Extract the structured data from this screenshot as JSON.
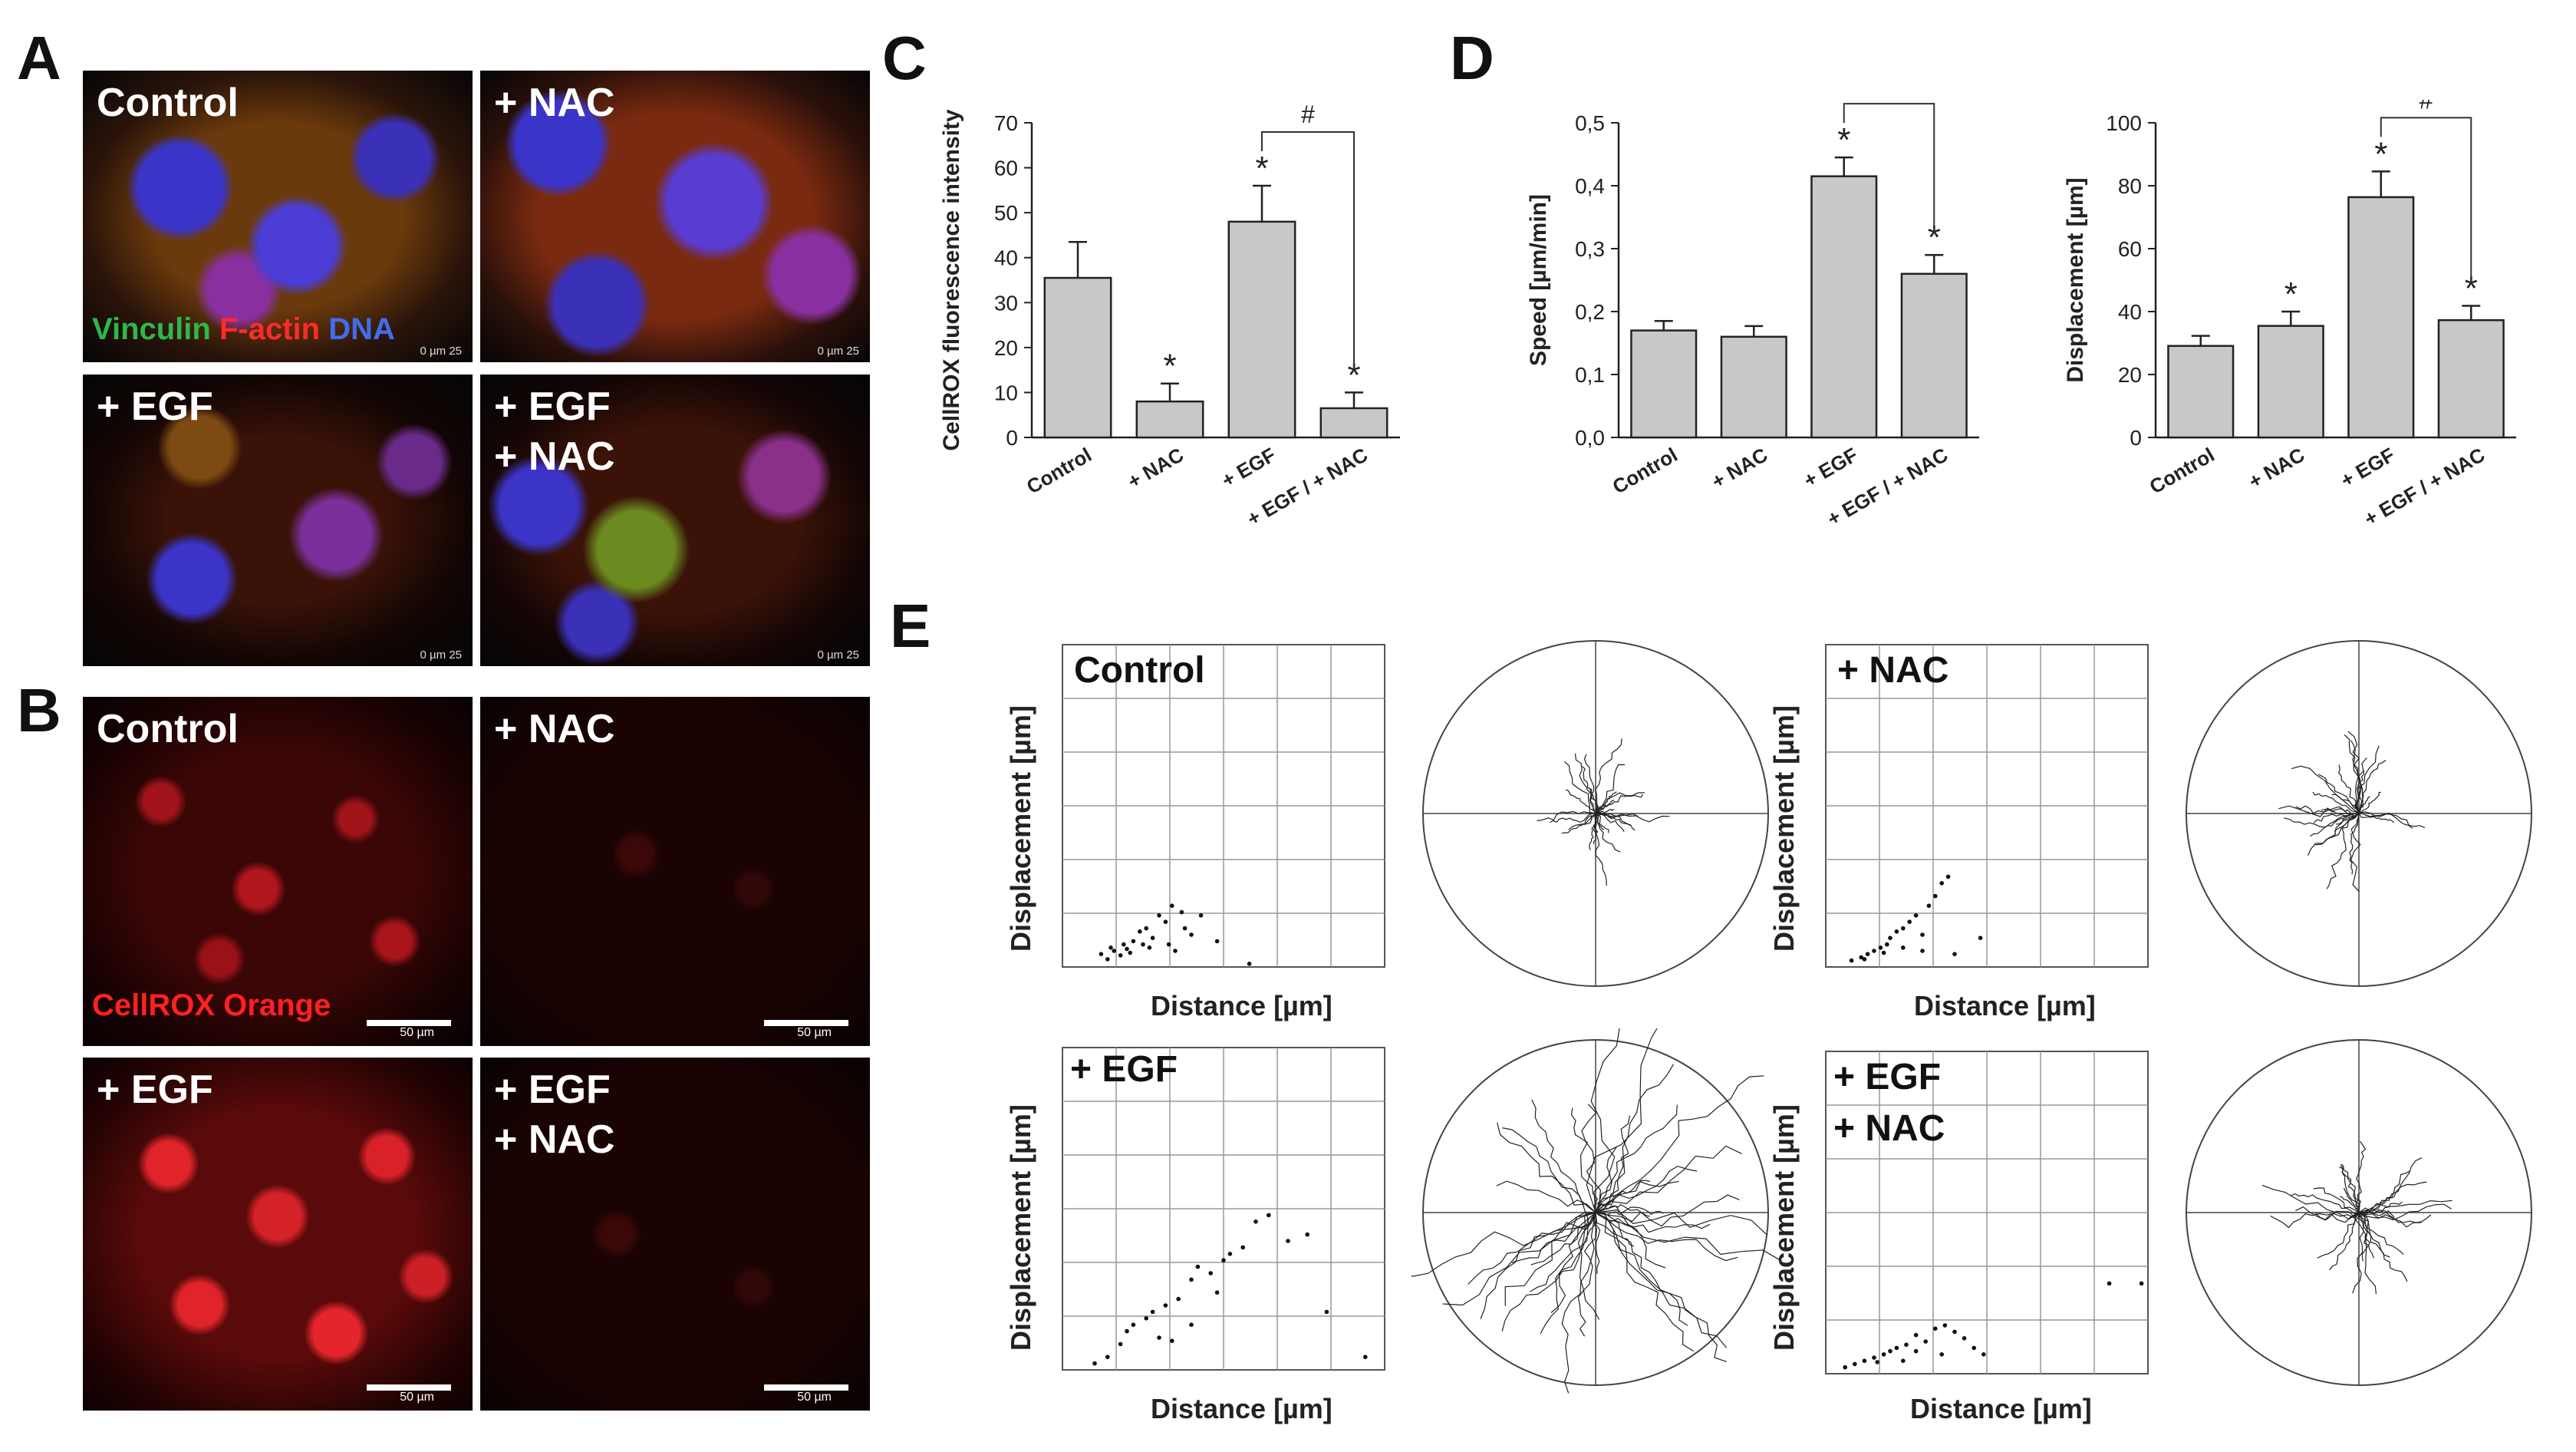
{
  "panels": {
    "A": {
      "letter": "A",
      "tiles": [
        "Control",
        "+ NAC",
        "+ EGF",
        "+ EGF\n+ NAC"
      ],
      "stain_vinculin": "Vinculin",
      "stain_factin": "F-actin",
      "stain_dna": "DNA",
      "scale_text": "0    µm   25"
    },
    "B": {
      "letter": "B",
      "tiles": [
        "Control",
        "+ NAC",
        "+ EGF",
        "+ EGF\n+ NAC"
      ],
      "stain": "CellROX Orange",
      "scale_text": "50 µm"
    },
    "C": {
      "letter": "C"
    },
    "D": {
      "letter": "D"
    },
    "E": {
      "letter": "E",
      "plots": [
        "Control",
        "+ NAC",
        "+ EGF",
        "+ EGF\n+ NAC"
      ],
      "ylabel": "Displacement [µm]",
      "xlabel": "Distance [µm]"
    }
  },
  "chart_data": [
    {
      "type": "bar",
      "panel": "C",
      "categories": [
        "Control",
        "+ NAC",
        "+ EGF",
        "+ EGF / + NAC"
      ],
      "values": [
        35.5,
        8,
        48,
        6.5
      ],
      "errors": [
        8,
        4,
        8,
        3.5
      ],
      "significance": [
        "",
        "*",
        "*",
        "*"
      ],
      "bracket": {
        "from": 2,
        "to": 3,
        "label": "#"
      },
      "ylabel": "CellROX fluorescence intensity",
      "ylim": [
        0,
        70
      ],
      "yticks": [
        0,
        10,
        20,
        30,
        40,
        50,
        60,
        70
      ],
      "bar_color": "#c8c8c8"
    },
    {
      "type": "bar",
      "panel": "D-speed",
      "categories": [
        "Control",
        "+ NAC",
        "+ EGF",
        "+ EGF / + NAC"
      ],
      "values": [
        0.17,
        0.16,
        0.415,
        0.26
      ],
      "errors": [
        0.015,
        0.017,
        0.03,
        0.03
      ],
      "significance": [
        "",
        "",
        "*",
        "*"
      ],
      "bracket": {
        "from": 2,
        "to": 3,
        "label": "#"
      },
      "ylabel": "Speed [µm/min]",
      "ylim": [
        0,
        0.5
      ],
      "yticks": [
        "0,0",
        "0,1",
        "0,2",
        "0,3",
        "0,4",
        "0,5"
      ],
      "bar_color": "#c8c8c8"
    },
    {
      "type": "bar",
      "panel": "D-displacement",
      "categories": [
        "Control",
        "+ NAC",
        "+ EGF",
        "+ EGF / + NAC"
      ],
      "values": [
        32,
        39,
        84,
        41
      ],
      "errors": [
        3.5,
        5,
        9,
        5
      ],
      "significance": [
        "",
        "*",
        "*",
        "*"
      ],
      "bracket": {
        "from": 2,
        "to": 3,
        "label": "#"
      },
      "ylabel": "Displacement [µm]",
      "ylim": [
        0,
        110
      ],
      "yticks": [
        0,
        20,
        40,
        60,
        80,
        100
      ],
      "bar_color": "#c8c8c8"
    },
    {
      "type": "scatter",
      "panel": "E-Control",
      "points": [
        [
          60,
          20
        ],
        [
          75,
          30
        ],
        [
          80,
          25
        ],
        [
          95,
          35
        ],
        [
          100,
          28
        ],
        [
          110,
          40
        ],
        [
          120,
          55
        ],
        [
          125,
          35
        ],
        [
          130,
          60
        ],
        [
          140,
          45
        ],
        [
          150,
          80
        ],
        [
          160,
          70
        ],
        [
          165,
          35
        ],
        [
          170,
          95
        ],
        [
          175,
          25
        ],
        [
          185,
          85
        ],
        [
          190,
          60
        ],
        [
          200,
          50
        ],
        [
          215,
          80
        ],
        [
          240,
          40
        ],
        [
          290,
          5
        ],
        [
          70,
          12
        ],
        [
          90,
          18
        ],
        [
          105,
          22
        ],
        [
          135,
          30
        ]
      ],
      "xlim": [
        0,
        500
      ],
      "ylim": [
        0,
        500
      ]
    },
    {
      "type": "scatter",
      "panel": "E-NAC",
      "points": [
        [
          40,
          10
        ],
        [
          55,
          15
        ],
        [
          65,
          20
        ],
        [
          75,
          25
        ],
        [
          85,
          30
        ],
        [
          95,
          35
        ],
        [
          100,
          45
        ],
        [
          110,
          55
        ],
        [
          120,
          60
        ],
        [
          130,
          70
        ],
        [
          140,
          80
        ],
        [
          150,
          50
        ],
        [
          160,
          95
        ],
        [
          170,
          110
        ],
        [
          180,
          130
        ],
        [
          190,
          140
        ],
        [
          150,
          25
        ],
        [
          200,
          20
        ],
        [
          240,
          45
        ],
        [
          120,
          30
        ],
        [
          90,
          22
        ],
        [
          60,
          12
        ]
      ],
      "xlim": [
        0,
        500
      ],
      "ylim": [
        0,
        500
      ]
    },
    {
      "type": "scatter",
      "panel": "E-EGF",
      "points": [
        [
          50,
          10
        ],
        [
          70,
          20
        ],
        [
          90,
          40
        ],
        [
          100,
          60
        ],
        [
          110,
          70
        ],
        [
          130,
          80
        ],
        [
          140,
          90
        ],
        [
          150,
          50
        ],
        [
          160,
          100
        ],
        [
          170,
          45
        ],
        [
          180,
          110
        ],
        [
          200,
          140
        ],
        [
          210,
          160
        ],
        [
          230,
          150
        ],
        [
          250,
          170
        ],
        [
          260,
          180
        ],
        [
          280,
          190
        ],
        [
          300,
          230
        ],
        [
          320,
          240
        ],
        [
          350,
          200
        ],
        [
          380,
          210
        ],
        [
          410,
          90
        ],
        [
          470,
          20
        ],
        [
          240,
          120
        ],
        [
          200,
          70
        ]
      ],
      "xlim": [
        0,
        500
      ],
      "ylim": [
        0,
        500
      ]
    },
    {
      "type": "scatter",
      "panel": "E-EGF-NAC",
      "points": [
        [
          30,
          10
        ],
        [
          45,
          15
        ],
        [
          60,
          20
        ],
        [
          75,
          25
        ],
        [
          90,
          30
        ],
        [
          100,
          35
        ],
        [
          110,
          40
        ],
        [
          125,
          45
        ],
        [
          140,
          60
        ],
        [
          155,
          50
        ],
        [
          170,
          70
        ],
        [
          185,
          75
        ],
        [
          200,
          65
        ],
        [
          215,
          55
        ],
        [
          230,
          40
        ],
        [
          245,
          30
        ],
        [
          180,
          30
        ],
        [
          120,
          20
        ],
        [
          440,
          140
        ],
        [
          490,
          140
        ],
        [
          80,
          18
        ],
        [
          140,
          35
        ]
      ],
      "xlim": [
        0,
        500
      ],
      "ylim": [
        0,
        500
      ]
    }
  ]
}
